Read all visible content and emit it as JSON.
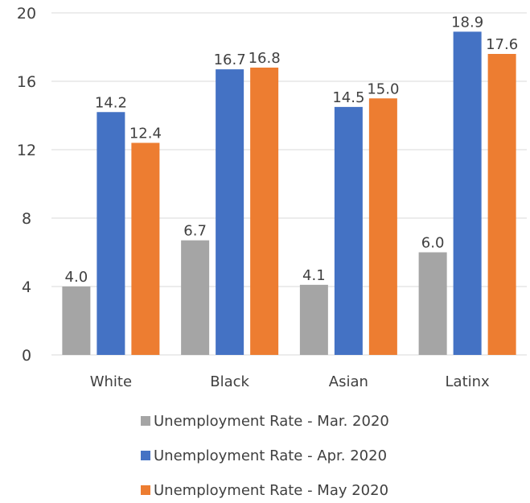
{
  "chart_data": {
    "type": "bar",
    "title": "",
    "xlabel": "",
    "ylabel": "",
    "ylim": [
      0,
      20
    ],
    "yticks": [
      0,
      4,
      8,
      12,
      16,
      20
    ],
    "grid": true,
    "legend_position": "bottom",
    "categories": [
      "White",
      "Black",
      "Asian",
      "Latinx"
    ],
    "series": [
      {
        "name": "Unemployment Rate - Mar. 2020",
        "color": "#a5a5a5",
        "values": [
          4.0,
          6.7,
          4.1,
          6.0
        ]
      },
      {
        "name": "Unemployment Rate - Apr. 2020",
        "color": "#4472c4",
        "values": [
          14.2,
          16.7,
          14.5,
          18.9
        ]
      },
      {
        "name": "Unemployment Rate - May 2020",
        "color": "#ed7d31",
        "values": [
          12.4,
          16.8,
          15.0,
          17.6
        ]
      }
    ]
  }
}
